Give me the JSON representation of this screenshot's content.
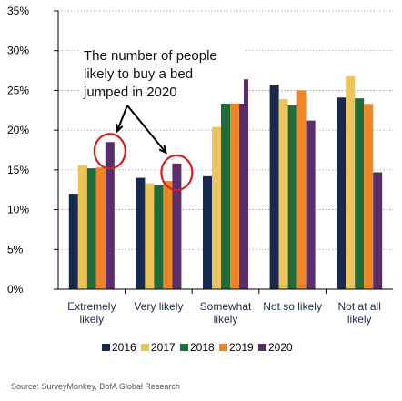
{
  "chart_data": {
    "type": "bar",
    "categories": [
      [
        "Extremely",
        "likely"
      ],
      [
        "Very likely",
        ""
      ],
      [
        "Somewhat",
        "likely"
      ],
      [
        "Not so likely",
        ""
      ],
      [
        "Not at all",
        "likely"
      ]
    ],
    "series": [
      {
        "name": "2016",
        "values": [
          12.0,
          14.0,
          14.2,
          25.7,
          24.1
        ]
      },
      {
        "name": "2017",
        "values": [
          15.6,
          13.3,
          20.4,
          23.9,
          26.8
        ]
      },
      {
        "name": "2018",
        "values": [
          15.2,
          13.1,
          24.6,
          23.1,
          24.0
        ]
      },
      {
        "name": "2019",
        "values": [
          15.3,
          13.6,
          24.7,
          25.0,
          23.3
        ]
      },
      {
        "name": "2020",
        "values": [
          18.5,
          15.8,
          26.4,
          21.2,
          14.7
        ]
      }
    ],
    "colors": [
      "#17294f",
      "#ecc45a",
      "#1f6b3a",
      "#ef8525",
      "#5a2d6b"
    ],
    "ylim": [
      0,
      35
    ],
    "yticks": [
      "0%",
      "5%",
      "10%",
      "15%",
      "20%",
      "25%",
      "30%",
      "35%"
    ],
    "grid": true,
    "legend_position": "bottom",
    "annotation": {
      "lines": [
        "The number of people",
        "likely to buy a bed",
        "jumped in 2020"
      ],
      "circled": [
        {
          "category": 0,
          "series": 4
        },
        {
          "category": 1,
          "series": 4
        }
      ]
    },
    "source": "Source: SurveyMonkey, BofA Global Research"
  }
}
